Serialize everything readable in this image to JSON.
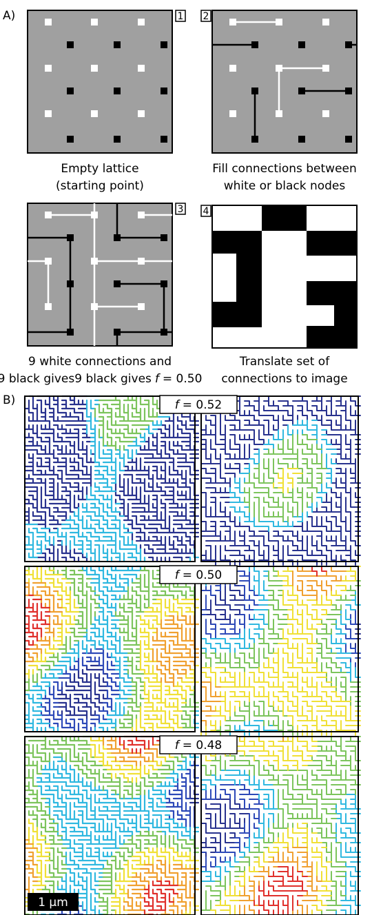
{
  "panel_a": {
    "label": "A)",
    "steps": [
      {
        "number": "1",
        "caption": [
          "Empty lattice",
          "(starting point)"
        ]
      },
      {
        "number": "2",
        "caption": [
          "Fill connections between",
          "white or black nodes"
        ]
      },
      {
        "number": "3",
        "caption": [
          "9 white connections and",
          "9 black gives"
        ],
        "symbol": "f",
        "value": "= 0.50"
      },
      {
        "number": "4",
        "caption": [
          "Translate set of",
          "connections to image"
        ]
      }
    ]
  },
  "panel_b": {
    "label": "B)",
    "rows": [
      {
        "symbol": "f",
        "value": "= 0.52"
      },
      {
        "symbol": "f",
        "value": "= 0.50"
      },
      {
        "symbol": "f",
        "value": "= 0.48"
      }
    ],
    "scale_bar": "1 µm"
  }
}
